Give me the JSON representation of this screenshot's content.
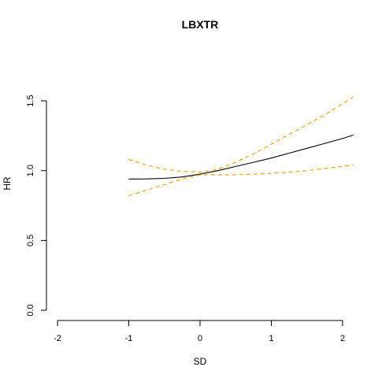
{
  "chart_data": {
    "type": "line",
    "title": "LBXTR",
    "xlabel": "SD",
    "ylabel": "HR",
    "xlim": [
      -2,
      2.15
    ],
    "ylim": [
      0,
      1.5
    ],
    "xticks": [
      "-2",
      "-1",
      "0",
      "1",
      "2"
    ],
    "yticks": [
      "0.0",
      "0.5",
      "1.0",
      "1.5"
    ],
    "grid": false,
    "series": [
      {
        "role": "estimate",
        "color": "#000000",
        "dash": "solid",
        "x": [
          -1.0,
          -0.75,
          -0.5,
          -0.25,
          0.0,
          0.25,
          0.5,
          0.75,
          1.0,
          1.25,
          1.5,
          1.75,
          2.0,
          2.15
        ],
        "y": [
          0.94,
          0.941,
          0.945,
          0.955,
          0.975,
          1.0,
          1.03,
          1.06,
          1.09,
          1.125,
          1.16,
          1.195,
          1.23,
          1.255
        ]
      },
      {
        "role": "upper-ci",
        "color": "#ffa500",
        "dash": "dashed",
        "x": [
          -1.0,
          -0.75,
          -0.5,
          -0.25,
          0.0,
          0.25,
          0.5,
          0.75,
          1.0,
          1.25,
          1.5,
          1.75,
          2.0,
          2.15
        ],
        "y": [
          1.08,
          1.04,
          1.01,
          0.995,
          0.99,
          1.01,
          1.06,
          1.12,
          1.19,
          1.26,
          1.33,
          1.4,
          1.48,
          1.53
        ]
      },
      {
        "role": "lower-ci",
        "color": "#ffa500",
        "dash": "dashed",
        "x": [
          -1.0,
          -0.75,
          -0.5,
          -0.25,
          0.0,
          0.25,
          0.5,
          0.75,
          1.0,
          1.25,
          1.5,
          1.75,
          2.0,
          2.15
        ],
        "y": [
          0.82,
          0.86,
          0.9,
          0.94,
          0.97,
          0.97,
          0.97,
          0.975,
          0.98,
          0.99,
          1.0,
          1.015,
          1.03,
          1.04
        ]
      }
    ]
  }
}
